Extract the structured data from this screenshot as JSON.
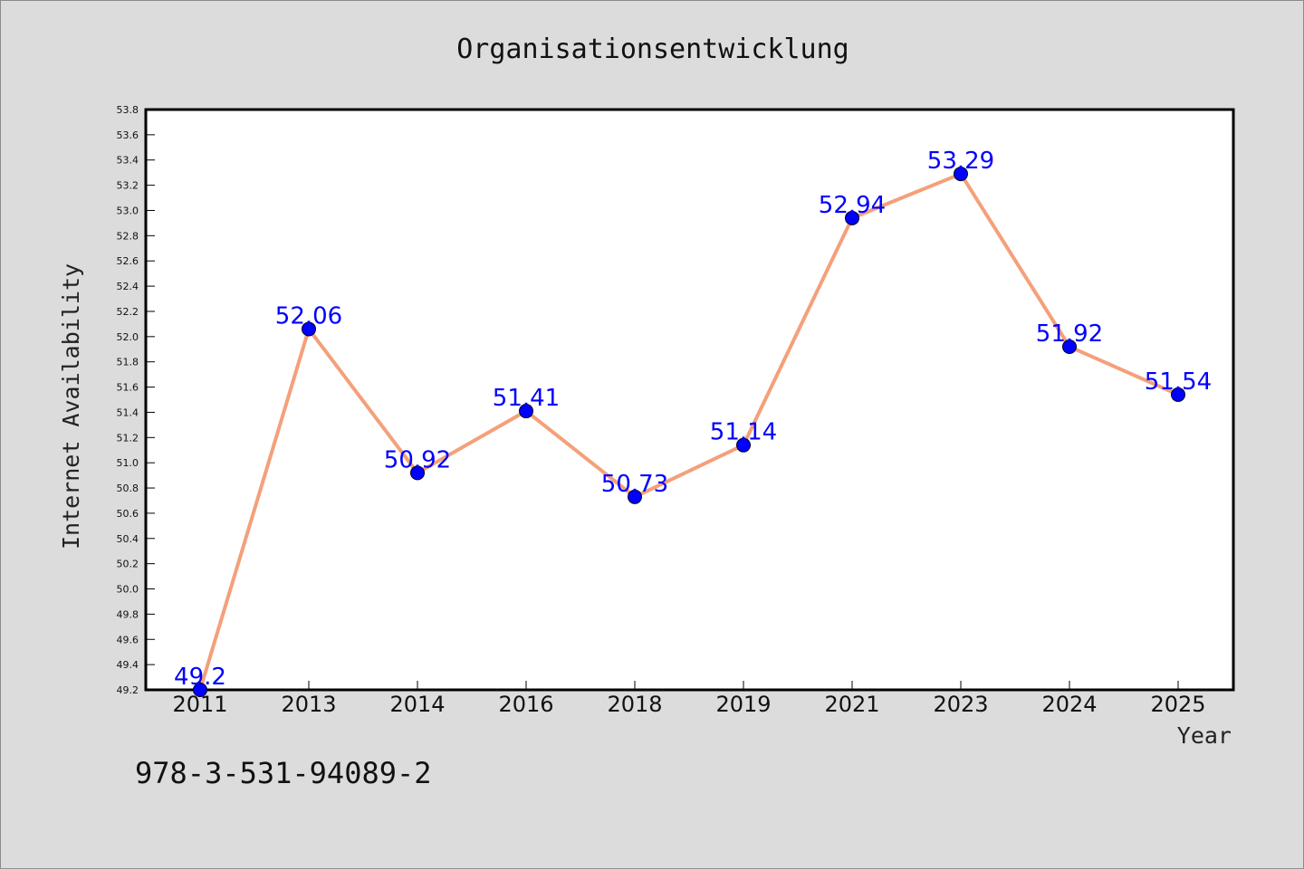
{
  "chart_data": {
    "type": "line",
    "title": "Organisationsentwicklung",
    "xlabel": "Year",
    "ylabel": "Internet Availability",
    "categories": [
      "2011",
      "2013",
      "2014",
      "2016",
      "2018",
      "2019",
      "2021",
      "2023",
      "2024",
      "2025"
    ],
    "series": [
      {
        "values": [
          49.2,
          52.06,
          50.92,
          51.41,
          50.73,
          51.14,
          52.94,
          53.29,
          51.92,
          51.54
        ],
        "labels": [
          "49.2",
          "52.06",
          "50.92",
          "51.41",
          "50.73",
          "51.14",
          "52.94",
          "53.29",
          "51.92",
          "51.54"
        ],
        "line_color": "#f4a07a",
        "marker_color": "#0000ff"
      }
    ],
    "ylim": [
      49.2,
      53.8
    ],
    "yticks": [
      "49.2",
      "49.4",
      "49.6",
      "49.8",
      "50.0",
      "50.2",
      "50.4",
      "50.6",
      "50.8",
      "51.0",
      "51.2",
      "51.4",
      "51.6",
      "51.8",
      "52.0",
      "52.2",
      "52.4",
      "52.6",
      "52.8",
      "53.0",
      "53.2",
      "53.4",
      "53.6",
      "53.8"
    ],
    "grid": false,
    "legend": "none"
  },
  "footer": {
    "isbn": "978-3-531-94089-2"
  },
  "colors": {
    "background": "#dcdcdc",
    "plot_area": "#ffffff",
    "line": "#f4a07a",
    "marker": "#0000ff",
    "data_label": "#0000ff"
  }
}
